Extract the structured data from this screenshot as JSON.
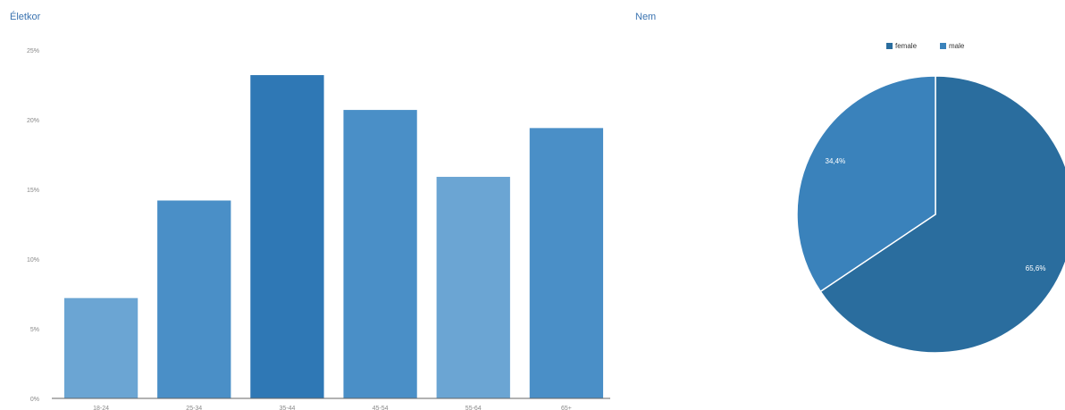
{
  "sections": {
    "age_title": "Életkor",
    "gender_title": "Nem"
  },
  "colors": {
    "bar_light": "#6ba5d3",
    "bar_mid": "#4a8fc7",
    "bar_dark": "#2f78b5",
    "pie_female": "#2a6d9e",
    "pie_male": "#3a82bb",
    "axis": "#666666",
    "tick_text": "#888888",
    "title": "#3a73b0"
  },
  "chart_data": [
    {
      "type": "bar",
      "title": "Életkor",
      "categories": [
        "18-24",
        "25-34",
        "35-44",
        "45-54",
        "55-64",
        "65+"
      ],
      "values": [
        7.2,
        14.2,
        23.2,
        20.7,
        15.9,
        19.4
      ],
      "ylim": [
        0,
        25
      ],
      "yticks": [
        "0%",
        "5%",
        "10%",
        "15%",
        "20%",
        "25%"
      ],
      "ytick_values": [
        0,
        5,
        10,
        15,
        20,
        25
      ],
      "grid": false,
      "bar_shades": [
        "light",
        "mid",
        "dark",
        "mid",
        "light",
        "mid"
      ]
    },
    {
      "type": "pie",
      "title": "Nem",
      "legend_position": "top",
      "slices": [
        {
          "label": "female",
          "value": 65.6,
          "display": "65,6%"
        },
        {
          "label": "male",
          "value": 34.4,
          "display": "34,4%"
        }
      ]
    }
  ]
}
